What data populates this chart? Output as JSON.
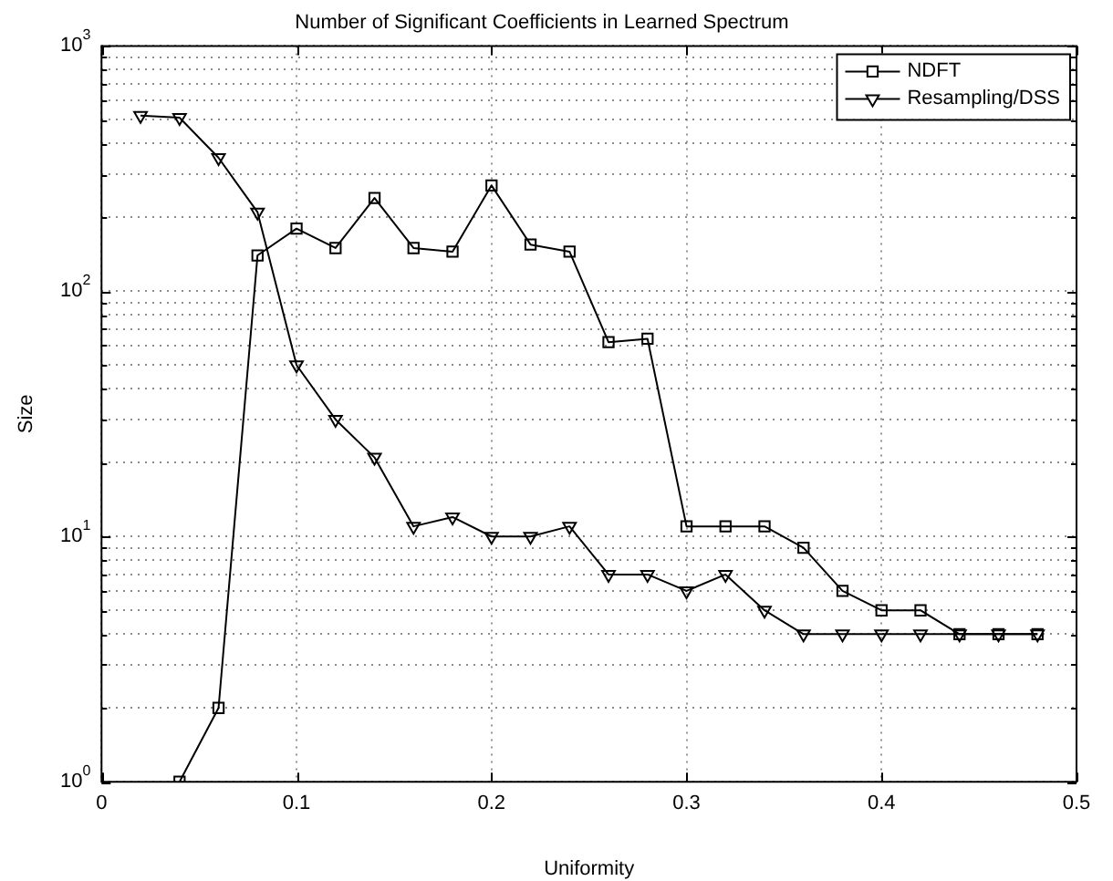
{
  "chart_data": {
    "type": "line",
    "title": "Number of Significant Coefficients in Learned Spectrum",
    "xlabel": "Uniformity",
    "ylabel": "Size",
    "log": "y",
    "grid": true,
    "legend": "top right",
    "xlim": [
      0,
      0.5
    ],
    "xticks": [
      0,
      0.1,
      0.2,
      0.3,
      0.4,
      0.5
    ],
    "ylim": [
      1,
      1000
    ],
    "yticks": [
      {
        "value": 1,
        "label": "10$^{0}$"
      },
      {
        "value": 2,
        "label": null
      },
      {
        "value": 3,
        "label": null
      },
      {
        "value": 4,
        "label": null
      },
      {
        "value": 5,
        "label": null
      },
      {
        "value": 6,
        "label": null
      },
      {
        "value": 7,
        "label": null
      },
      {
        "value": 8,
        "label": null
      },
      {
        "value": 9,
        "label": null
      },
      {
        "value": 10,
        "label": "10$^{1}$"
      },
      {
        "value": 20,
        "label": null
      },
      {
        "value": 30,
        "label": null
      },
      {
        "value": 40,
        "label": null
      },
      {
        "value": 50,
        "label": null
      },
      {
        "value": 60,
        "label": null
      },
      {
        "value": 70,
        "label": null
      },
      {
        "value": 80,
        "label": null
      },
      {
        "value": 90,
        "label": null
      },
      {
        "value": 100,
        "label": "10$^{2}$"
      },
      {
        "value": 200,
        "label": null
      },
      {
        "value": 300,
        "label": null
      },
      {
        "value": 400,
        "label": null
      },
      {
        "value": 500,
        "label": null
      },
      {
        "value": 600,
        "label": null
      },
      {
        "value": 700,
        "label": null
      },
      {
        "value": 800,
        "label": null
      },
      {
        "value": 900,
        "label": null
      },
      {
        "value": 1000,
        "label": "10$^{3}$"
      }
    ],
    "series": [
      {
        "name": "NDFT",
        "color": "#000000",
        "marker": "square",
        "x": [
          0.04,
          0.06,
          0.08,
          0.1,
          0.12,
          0.14,
          0.16,
          0.18,
          0.2,
          0.22,
          0.24,
          0.26,
          0.28,
          0.3,
          0.32,
          0.34,
          0.36,
          0.38,
          0.4,
          0.42,
          0.44,
          0.46,
          0.48
        ],
        "values": [
          1,
          2,
          140,
          180,
          150,
          240,
          150,
          145,
          270,
          155,
          145,
          62,
          64,
          11,
          11,
          11,
          9,
          6,
          5,
          5,
          4,
          4,
          4
        ]
      },
      {
        "name": "Resampling/DSS",
        "color": "#000000",
        "marker": "triangle-down",
        "x": [
          0.02,
          0.04,
          0.06,
          0.08,
          0.1,
          0.12,
          0.14,
          0.16,
          0.18,
          0.2,
          0.22,
          0.24,
          0.26,
          0.28,
          0.3,
          0.32,
          0.34,
          0.36,
          0.38,
          0.4,
          0.42,
          0.44,
          0.46,
          0.48
        ],
        "values": [
          520,
          510,
          350,
          210,
          50,
          30,
          21,
          11,
          12,
          10,
          10,
          11,
          7,
          7,
          6,
          7,
          5,
          4,
          4,
          4,
          4,
          4,
          4,
          4
        ]
      }
    ]
  }
}
